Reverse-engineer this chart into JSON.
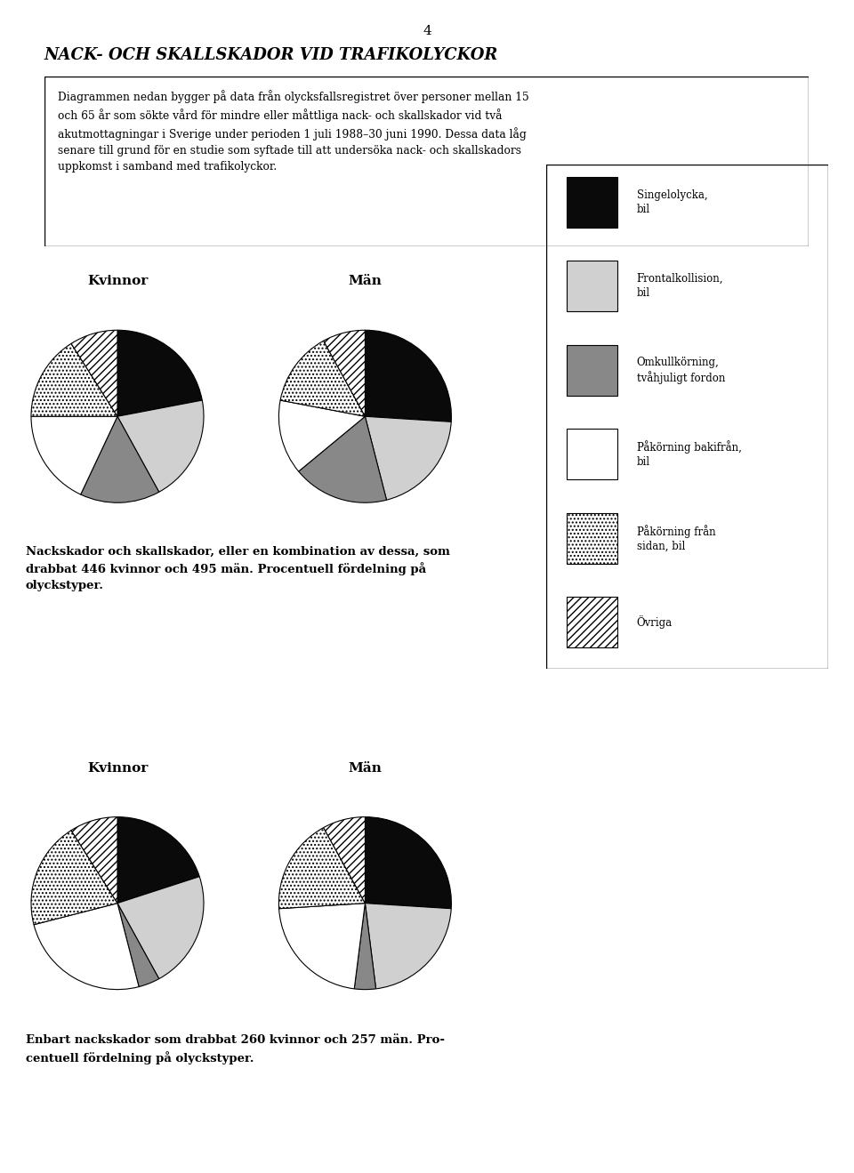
{
  "title": "NACK- OCH SKALLSKADOR VID TRAFIKOLYCKOR",
  "page_number": "4",
  "intro_text_lines": [
    "Diagrammen nedan bygger på data från olycksfallsregistret över personer mellan 15",
    "och 65 år som sökte vård för mindre eller måttliga nack- och skallskador vid två",
    "akutmottagningar i Sverige under perioden 1 juli 1988–30 juni 1990. Dessa data låg",
    "senare till grund för en studie som syftade till att undersöka nack- och skallskadors",
    "uppkomst i samband med trafikolyckor."
  ],
  "caption1_lines": [
    "Nackskador och skallskador, eller en kombination av dessa, som",
    "drabbat 446 kvinnor och 495 män. Procentuell fördelning på",
    "olyckstyper."
  ],
  "caption2_lines": [
    "Enbart nackskador som drabbat 260 kvinnor och 257 män. Pro-",
    "centuell fördelning på olyckstyper."
  ],
  "legend_items": [
    {
      "label_lines": [
        "Singelolycka,",
        "bil"
      ],
      "fc": "#0a0a0a",
      "hatch": ""
    },
    {
      "label_lines": [
        "Frontalkollision,",
        "bil"
      ],
      "fc": "#d0d0d0",
      "hatch": ""
    },
    {
      "label_lines": [
        "Omkullkörning,",
        "tvåhjuligt fordon"
      ],
      "fc": "#888888",
      "hatch": ""
    },
    {
      "label_lines": [
        "Påkörning bakifrån,",
        "bil"
      ],
      "fc": "#ffffff",
      "hatch": ""
    },
    {
      "label_lines": [
        "Påkörning från",
        "sidan, bil"
      ],
      "fc": "#ffffff",
      "hatch": "dots"
    },
    {
      "label_lines": [
        "Övriga"
      ],
      "fc": "#ffffff",
      "hatch": "diag"
    }
  ],
  "chart1_kvinnor_label": "Kvinnor",
  "chart1_man_label": "Män",
  "chart2_kvinnor_label": "Kvinnor",
  "chart2_man_label": "Män",
  "pie1_kvinnor": [
    22,
    20,
    15,
    18,
    16,
    9
  ],
  "pie1_man": [
    26,
    20,
    18,
    14,
    14,
    8
  ],
  "pie2_kvinnor": [
    20,
    22,
    4,
    25,
    20,
    9
  ],
  "pie2_man": [
    26,
    22,
    4,
    22,
    18,
    8
  ],
  "background": "#ffffff"
}
